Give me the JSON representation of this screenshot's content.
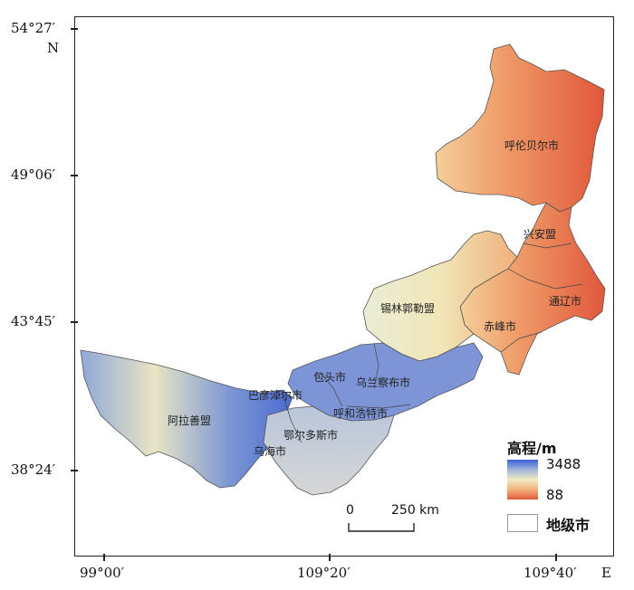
{
  "axes": {
    "y_labels": [
      "54°27′",
      "49°06′",
      "43°45′",
      "38°24′"
    ],
    "north_label": "N",
    "x_labels": [
      "99°00′",
      "109°20′",
      "109°40′"
    ],
    "east_label": "E"
  },
  "cities": [
    "呼伦贝尔市",
    "兴安盟",
    "通辽市",
    "赤峰市",
    "锡林郭勒盟",
    "乌兰察布市",
    "包头市",
    "巴彦淖尔市",
    "呼和浩特市",
    "鄂尔多斯市",
    "乌海市",
    "阿拉善盟"
  ],
  "legend": {
    "title": "高程/m",
    "max": "3488",
    "min": "88",
    "city_label": "地级市",
    "colors": {
      "high": "#3a5ed8",
      "mid": "#f1ecc4",
      "low": "#df5a3a"
    }
  },
  "scale_bar": {
    "zero": "0",
    "distance": "250 km"
  }
}
